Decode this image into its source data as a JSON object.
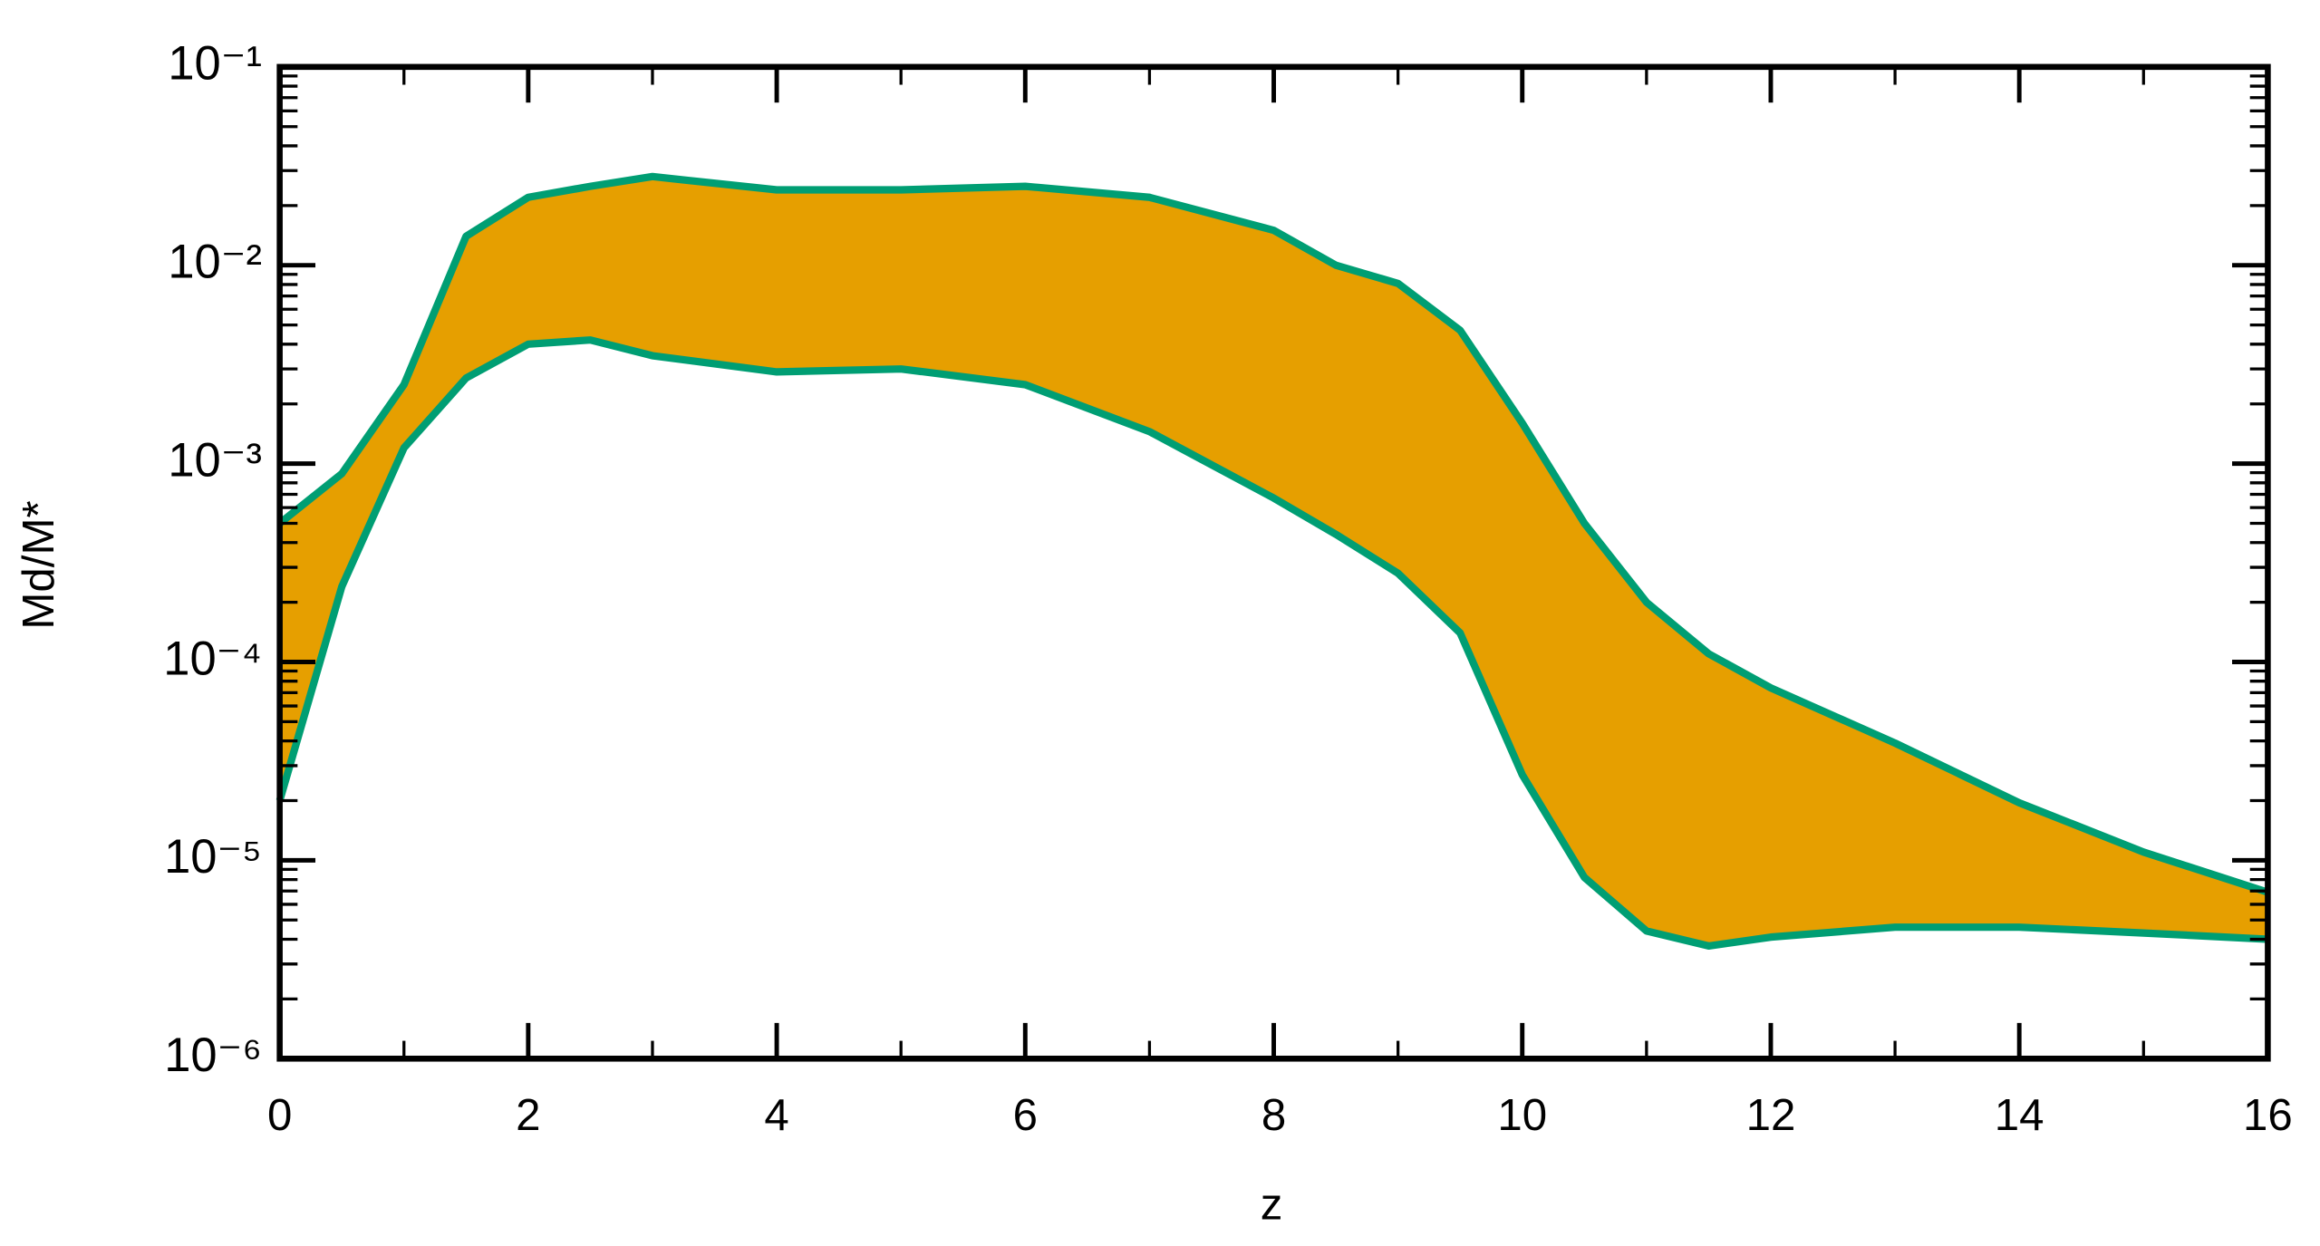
{
  "chart_data": {
    "type": "band",
    "xlabel": "z",
    "ylabel": "Md/M*",
    "x": [
      0,
      0.5,
      1,
      1.5,
      2,
      2.5,
      3,
      4,
      5,
      6,
      7,
      8,
      8.5,
      9,
      9.5,
      10,
      10.5,
      11,
      11.5,
      12,
      13,
      14,
      15,
      16
    ],
    "series": [
      {
        "color": "#009e73",
        "values": [
          0.0005,
          0.00089,
          0.0025,
          0.014,
          0.022,
          0.025,
          0.028,
          0.024,
          0.024,
          0.025,
          0.022,
          0.015,
          0.01,
          0.0081,
          0.0047,
          0.0016,
          0.0005,
          0.0002,
          0.00011,
          7.4e-05,
          3.9e-05,
          1.95e-05,
          1.1e-05,
          6.9e-06
        ]
      },
      {
        "color": "#009e73",
        "values": [
          2e-05,
          0.00024,
          0.0012,
          0.0027,
          0.004,
          0.0042,
          0.0035,
          0.0029,
          0.003,
          0.0025,
          0.00145,
          0.00067,
          0.00044,
          0.00028,
          0.00014,
          2.7e-05,
          8.2e-06,
          4.4e-06,
          3.7e-06,
          4.1e-06,
          4.6e-06,
          4.6e-06,
          4.3e-06,
          4e-06
        ]
      }
    ],
    "fill": "#e69f00",
    "yscale": "log",
    "xlim": [
      0,
      16
    ],
    "xticks": [
      0,
      2,
      4,
      6,
      8,
      10,
      12,
      14,
      16
    ],
    "ylim": [
      1e-06,
      0.1
    ],
    "yticks": [
      {
        "value": 1e-06,
        "label": "10⁻⁶"
      },
      {
        "value": 1e-05,
        "label": "10⁻⁵"
      },
      {
        "value": 0.0001,
        "label": "10⁻⁴"
      },
      {
        "value": 0.001,
        "label": "10⁻³"
      },
      {
        "value": 0.01,
        "label": "10⁻²"
      },
      {
        "value": 0.1,
        "label": "10⁻¹"
      }
    ]
  }
}
